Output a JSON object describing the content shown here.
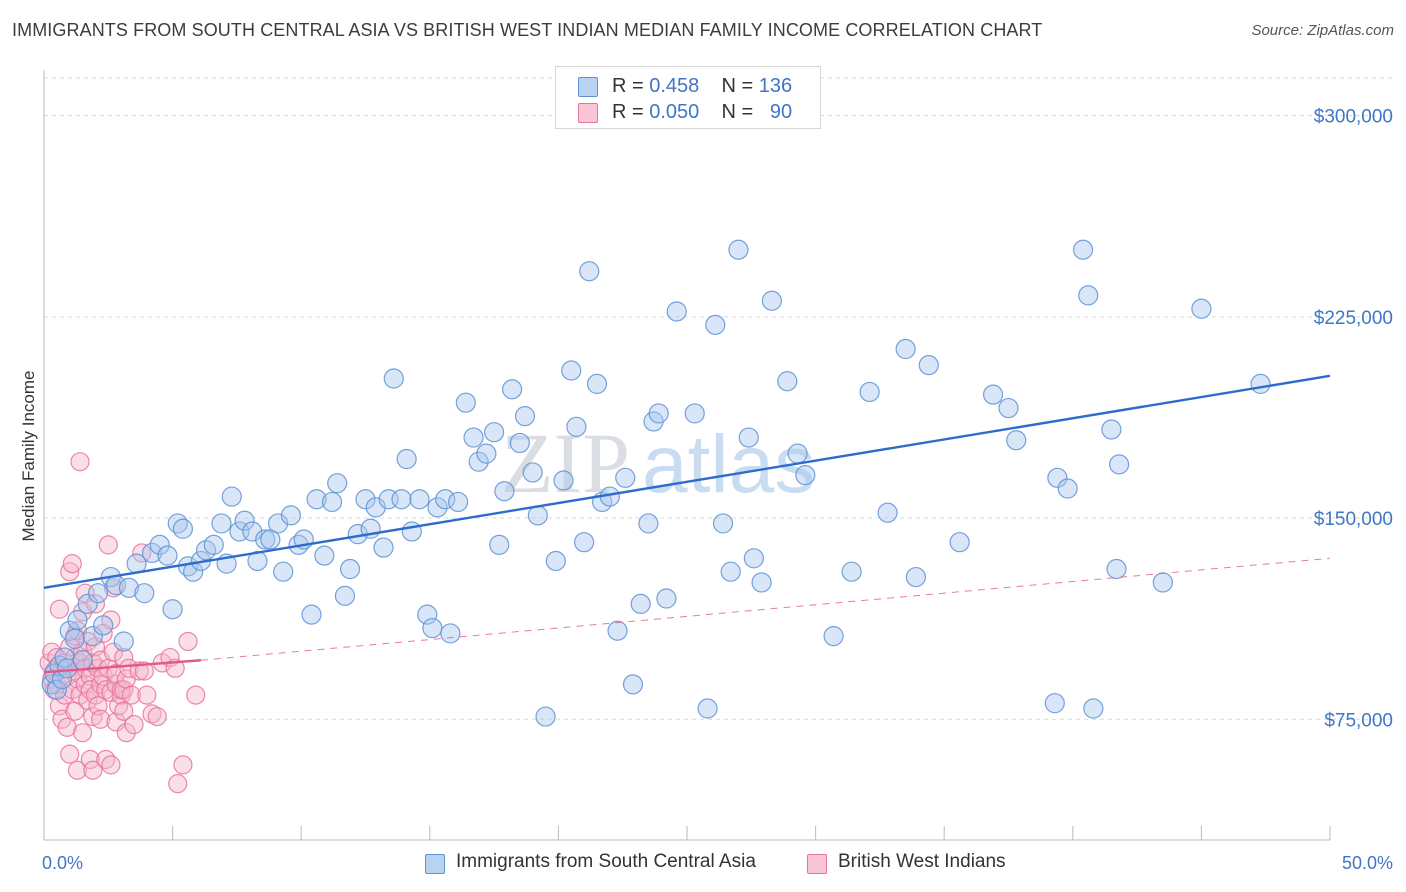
{
  "header": {
    "title": "IMMIGRANTS FROM SOUTH CENTRAL ASIA VS BRITISH WEST INDIAN MEDIAN FAMILY INCOME CORRELATION CHART",
    "source": "Source: ZipAtlas.com"
  },
  "watermark": {
    "zip": "ZIP",
    "atlas": "atlas"
  },
  "legend_top": {
    "rows": [
      {
        "r_label": "R =",
        "r_value": "0.458",
        "n_label": "N =",
        "n_value": "136"
      },
      {
        "r_label": "R =",
        "r_value": "0.050",
        "n_label": "N =",
        "n_value": "90"
      }
    ]
  },
  "legend_bottom": {
    "items": [
      {
        "label": "Immigrants from South Central Asia"
      },
      {
        "label": "British West Indians"
      }
    ]
  },
  "colors": {
    "blue_fill": "#a9c8ee",
    "blue_stroke": "#5e92d6",
    "blue_line": "#2d6ccc",
    "pink_fill": "#f5b5cb",
    "pink_stroke": "#e9739c",
    "pink_line": "#e05a8a",
    "tick_label": "#3f76c6",
    "grid": "#d9d9d9"
  },
  "chart_data": {
    "type": "scatter",
    "ylabel": "Median Family Income",
    "xlim": [
      0,
      50
    ],
    "ylim": [
      30000,
      317000
    ],
    "x_tick_labels": [
      {
        "value": 0,
        "label": "0.0%"
      },
      {
        "value": 50,
        "label": "50.0%"
      }
    ],
    "y_ticks": [
      {
        "value": 75000,
        "label": "$75,000"
      },
      {
        "value": 150000,
        "label": "$150,000"
      },
      {
        "value": 225000,
        "label": "$225,000"
      },
      {
        "value": 300000,
        "label": "$300,000"
      }
    ],
    "grid": "horizontal dashed",
    "legend_placement": "top-center and bottom",
    "series": [
      {
        "name": "Immigrants from South Central Asia",
        "trend": {
          "x": [
            0,
            50
          ],
          "y": [
            124000,
            203000
          ],
          "style": "solid"
        },
        "points": [
          [
            0.3,
            88000
          ],
          [
            0.4,
            92000
          ],
          [
            0.5,
            86000
          ],
          [
            0.6,
            95000
          ],
          [
            0.7,
            90000
          ],
          [
            0.8,
            98000
          ],
          [
            0.9,
            94000
          ],
          [
            1.0,
            108000
          ],
          [
            1.2,
            105000
          ],
          [
            1.3,
            112000
          ],
          [
            1.5,
            97000
          ],
          [
            1.7,
            118000
          ],
          [
            1.9,
            106000
          ],
          [
            2.1,
            122000
          ],
          [
            2.3,
            110000
          ],
          [
            2.6,
            128000
          ],
          [
            2.8,
            125000
          ],
          [
            3.1,
            104000
          ],
          [
            3.3,
            124000
          ],
          [
            3.6,
            133000
          ],
          [
            3.9,
            122000
          ],
          [
            4.2,
            137000
          ],
          [
            4.5,
            140000
          ],
          [
            4.8,
            136000
          ],
          [
            5.0,
            116000
          ],
          [
            5.2,
            148000
          ],
          [
            5.4,
            146000
          ],
          [
            5.6,
            132000
          ],
          [
            5.8,
            130000
          ],
          [
            6.1,
            134000
          ],
          [
            6.3,
            138000
          ],
          [
            6.6,
            140000
          ],
          [
            6.9,
            148000
          ],
          [
            7.1,
            133000
          ],
          [
            7.3,
            158000
          ],
          [
            7.6,
            145000
          ],
          [
            7.8,
            149000
          ],
          [
            8.1,
            145000
          ],
          [
            8.3,
            134000
          ],
          [
            8.6,
            142000
          ],
          [
            8.8,
            142000
          ],
          [
            9.1,
            148000
          ],
          [
            9.3,
            130000
          ],
          [
            9.6,
            151000
          ],
          [
            9.9,
            140000
          ],
          [
            10.1,
            142000
          ],
          [
            10.4,
            114000
          ],
          [
            10.6,
            157000
          ],
          [
            10.9,
            136000
          ],
          [
            11.2,
            156000
          ],
          [
            11.4,
            163000
          ],
          [
            11.7,
            121000
          ],
          [
            11.9,
            131000
          ],
          [
            12.2,
            144000
          ],
          [
            12.5,
            157000
          ],
          [
            12.7,
            146000
          ],
          [
            12.9,
            154000
          ],
          [
            13.2,
            139000
          ],
          [
            13.4,
            157000
          ],
          [
            13.6,
            202000
          ],
          [
            13.9,
            157000
          ],
          [
            14.1,
            172000
          ],
          [
            14.3,
            145000
          ],
          [
            14.6,
            157000
          ],
          [
            14.9,
            114000
          ],
          [
            15.1,
            109000
          ],
          [
            15.3,
            154000
          ],
          [
            15.6,
            157000
          ],
          [
            15.8,
            107000
          ],
          [
            16.1,
            156000
          ],
          [
            16.4,
            193000
          ],
          [
            16.7,
            180000
          ],
          [
            16.9,
            171000
          ],
          [
            17.2,
            174000
          ],
          [
            17.5,
            182000
          ],
          [
            17.7,
            140000
          ],
          [
            17.9,
            160000
          ],
          [
            18.2,
            198000
          ],
          [
            18.5,
            178000
          ],
          [
            18.7,
            188000
          ],
          [
            19.0,
            167000
          ],
          [
            19.2,
            151000
          ],
          [
            19.5,
            76000
          ],
          [
            19.9,
            134000
          ],
          [
            20.2,
            164000
          ],
          [
            20.5,
            205000
          ],
          [
            20.7,
            184000
          ],
          [
            21.0,
            141000
          ],
          [
            21.2,
            242000
          ],
          [
            21.5,
            200000
          ],
          [
            21.7,
            156000
          ],
          [
            22.0,
            158000
          ],
          [
            22.3,
            108000
          ],
          [
            22.6,
            165000
          ],
          [
            22.9,
            88000
          ],
          [
            23.2,
            118000
          ],
          [
            23.5,
            148000
          ],
          [
            23.7,
            186000
          ],
          [
            23.9,
            189000
          ],
          [
            24.2,
            120000
          ],
          [
            24.6,
            227000
          ],
          [
            25.3,
            189000
          ],
          [
            25.8,
            79000
          ],
          [
            26.1,
            222000
          ],
          [
            26.4,
            148000
          ],
          [
            26.7,
            130000
          ],
          [
            27.0,
            250000
          ],
          [
            27.4,
            180000
          ],
          [
            27.6,
            135000
          ],
          [
            27.9,
            126000
          ],
          [
            28.3,
            231000
          ],
          [
            28.9,
            201000
          ],
          [
            29.3,
            174000
          ],
          [
            29.6,
            166000
          ],
          [
            30.7,
            106000
          ],
          [
            31.4,
            130000
          ],
          [
            32.1,
            197000
          ],
          [
            32.8,
            152000
          ],
          [
            33.5,
            213000
          ],
          [
            33.9,
            128000
          ],
          [
            34.4,
            207000
          ],
          [
            35.6,
            141000
          ],
          [
            36.9,
            196000
          ],
          [
            37.5,
            191000
          ],
          [
            37.8,
            179000
          ],
          [
            39.3,
            81000
          ],
          [
            39.4,
            165000
          ],
          [
            39.8,
            161000
          ],
          [
            40.4,
            250000
          ],
          [
            40.6,
            233000
          ],
          [
            40.8,
            79000
          ],
          [
            41.5,
            183000
          ],
          [
            41.7,
            131000
          ],
          [
            41.8,
            170000
          ],
          [
            43.5,
            126000
          ],
          [
            45.0,
            228000
          ],
          [
            47.3,
            200000
          ]
        ]
      },
      {
        "name": "British West Indians",
        "trend": {
          "x": [
            0,
            6.1
          ],
          "y": [
            92500,
            97000
          ],
          "style": "solid",
          "extended_to": [
            50,
            135000
          ],
          "extended_style": "dashed"
        },
        "points": [
          [
            0.2,
            96000
          ],
          [
            0.3,
            90000
          ],
          [
            0.3,
            100000
          ],
          [
            0.4,
            86000
          ],
          [
            0.4,
            93000
          ],
          [
            0.5,
            98000
          ],
          [
            0.5,
            88000
          ],
          [
            0.6,
            116000
          ],
          [
            0.6,
            80000
          ],
          [
            0.7,
            94000
          ],
          [
            0.7,
            75000
          ],
          [
            0.8,
            96000
          ],
          [
            0.8,
            84000
          ],
          [
            0.9,
            72000
          ],
          [
            0.9,
            91000
          ],
          [
            1.0,
            130000
          ],
          [
            1.0,
            62000
          ],
          [
            1.0,
            102000
          ],
          [
            1.1,
            133000
          ],
          [
            1.1,
            86000
          ],
          [
            1.2,
            93000
          ],
          [
            1.2,
            78000
          ],
          [
            1.2,
            98000
          ],
          [
            1.2,
            106000
          ],
          [
            1.3,
            108000
          ],
          [
            1.3,
            56000
          ],
          [
            1.3,
            90000
          ],
          [
            1.4,
            171000
          ],
          [
            1.4,
            84000
          ],
          [
            1.4,
            96000
          ],
          [
            1.5,
            115000
          ],
          [
            1.5,
            70000
          ],
          [
            1.5,
            100000
          ],
          [
            1.6,
            122000
          ],
          [
            1.6,
            88000
          ],
          [
            1.6,
            94000
          ],
          [
            1.7,
            104000
          ],
          [
            1.7,
            82000
          ],
          [
            1.8,
            91000
          ],
          [
            1.8,
            60000
          ],
          [
            1.8,
            86000
          ],
          [
            1.9,
            76000
          ],
          [
            1.9,
            96000
          ],
          [
            1.9,
            56000
          ],
          [
            2.0,
            118000
          ],
          [
            2.0,
            84000
          ],
          [
            2.0,
            102000
          ],
          [
            2.1,
            94000
          ],
          [
            2.1,
            80000
          ],
          [
            2.2,
            88000
          ],
          [
            2.2,
            97000
          ],
          [
            2.2,
            75000
          ],
          [
            2.3,
            107000
          ],
          [
            2.3,
            91000
          ],
          [
            2.4,
            60000
          ],
          [
            2.4,
            86000
          ],
          [
            2.5,
            140000
          ],
          [
            2.5,
            94000
          ],
          [
            2.6,
            112000
          ],
          [
            2.6,
            58000
          ],
          [
            2.6,
            85000
          ],
          [
            2.7,
            124000
          ],
          [
            2.7,
            100000
          ],
          [
            2.8,
            88000
          ],
          [
            2.8,
            74000
          ],
          [
            2.8,
            92000
          ],
          [
            2.9,
            80000
          ],
          [
            3.0,
            84000
          ],
          [
            3.0,
            86000
          ],
          [
            3.1,
            86000
          ],
          [
            3.1,
            78000
          ],
          [
            3.1,
            98000
          ],
          [
            3.2,
            90000
          ],
          [
            3.2,
            70000
          ],
          [
            3.3,
            94000
          ],
          [
            3.4,
            84000
          ],
          [
            3.5,
            73000
          ],
          [
            3.7,
            93000
          ],
          [
            3.8,
            137000
          ],
          [
            3.9,
            93000
          ],
          [
            4.0,
            84000
          ],
          [
            4.2,
            77000
          ],
          [
            4.4,
            76000
          ],
          [
            4.6,
            96000
          ],
          [
            4.9,
            98000
          ],
          [
            5.2,
            51000
          ],
          [
            5.4,
            58000
          ],
          [
            5.6,
            104000
          ],
          [
            5.9,
            84000
          ],
          [
            5.1,
            94000
          ]
        ]
      }
    ]
  }
}
